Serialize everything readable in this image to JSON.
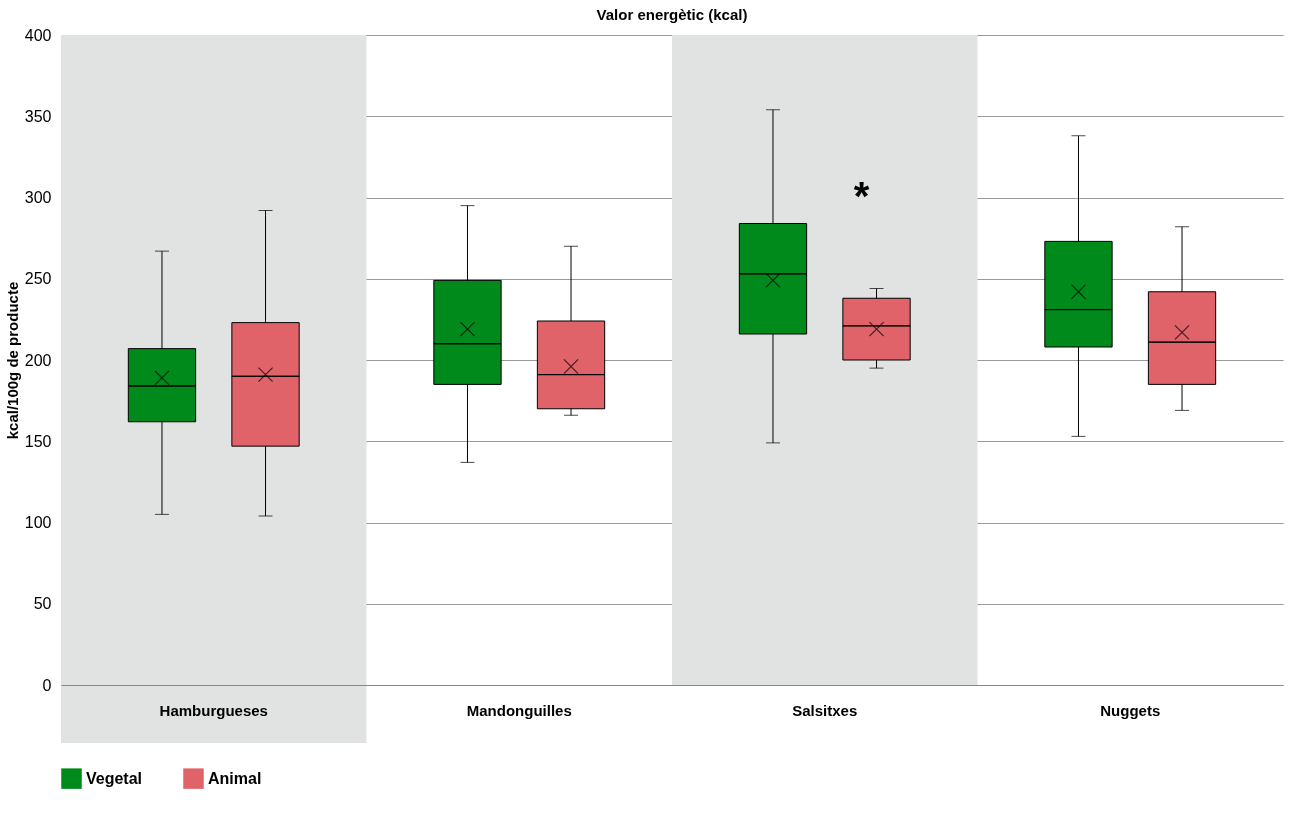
{
  "chart_data": {
    "type": "box",
    "title": "Valor energètic (kcal)",
    "ylabel": "kcal/100g de producte",
    "categories": [
      "Hamburgueses",
      "Mandonguilles",
      "Salsitxes",
      "Nuggets"
    ],
    "series": [
      {
        "name": "Vegetal",
        "color": "#008a1c",
        "boxes": [
          {
            "low": 105,
            "q1": 162,
            "median": 184,
            "q3": 207,
            "high": 267,
            "mean": 189
          },
          {
            "low": 137,
            "q1": 185,
            "median": 210,
            "q3": 249,
            "high": 295,
            "mean": 219
          },
          {
            "low": 149,
            "q1": 216,
            "median": 253,
            "q3": 284,
            "high": 354,
            "mean": 249
          },
          {
            "low": 153,
            "q1": 208,
            "median": 231,
            "q3": 273,
            "high": 338,
            "mean": 242
          }
        ]
      },
      {
        "name": "Animal",
        "color": "#e0636a",
        "boxes": [
          {
            "low": 104,
            "q1": 147,
            "median": 190,
            "q3": 223,
            "high": 292,
            "mean": 191
          },
          {
            "low": 166,
            "q1": 170,
            "median": 191,
            "q3": 224,
            "high": 270,
            "mean": 196
          },
          {
            "low": 195,
            "q1": 200,
            "median": 221,
            "q3": 238,
            "high": 244,
            "mean": 219
          },
          {
            "low": 169,
            "q1": 185,
            "median": 211,
            "q3": 242,
            "high": 282,
            "mean": 217
          }
        ]
      }
    ],
    "ylim": [
      0,
      400
    ],
    "yticks": [
      0,
      50,
      100,
      150,
      200,
      250,
      300,
      350,
      400
    ],
    "grid": "y",
    "legend": "bottom",
    "bands": [
      {
        "axis": "x",
        "from": "Hamburgueses",
        "to": "Hamburgueses",
        "color": "#e1e3e2"
      },
      {
        "axis": "x",
        "from": "Salsitxes",
        "to": "Salsitxes",
        "color": "#e1e3e2"
      }
    ],
    "annotations": [
      "*"
    ]
  }
}
